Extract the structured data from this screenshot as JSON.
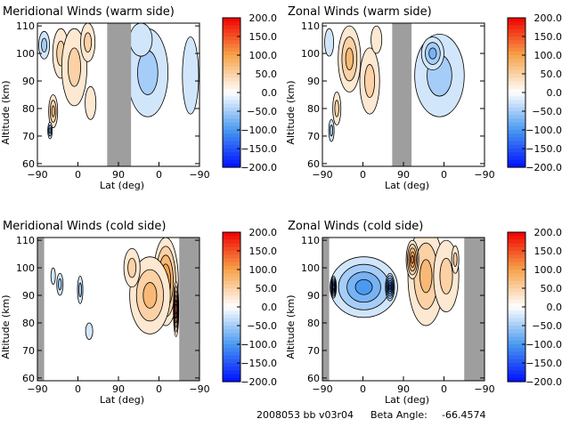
{
  "footer": {
    "orbit_id": "2008053 bb v03r04",
    "beta_label": "Beta Angle:",
    "beta_value": "-66.4574"
  },
  "colorbar": {
    "ticks": [
      "200.0",
      "150.0",
      "100.0",
      "50.0",
      "0.0",
      "−50.0",
      "−100.0",
      "−150.0",
      "−200.0"
    ],
    "range": [
      -200,
      200
    ],
    "colors": {
      "neg_end": "#0010ff",
      "neg_mid": "#4a9af0",
      "zero": "#ffffff",
      "pos_mid": "#f6a24a",
      "pos_end": "#f00000"
    }
  },
  "colors": {
    "data_gap": "#9e9e9e",
    "warm_fill": "#f6b36a",
    "cool_fill": "#a8d0f5",
    "line": "#000000"
  },
  "chart_data": [
    {
      "id": "meridional-warm",
      "type": "heatmap",
      "title": "Meridional Winds (warm side)",
      "xlabel": "Lat (deg)",
      "ylabel": "Altitude (km)",
      "x_tick_labels": [
        "−90",
        "0",
        "90",
        "0",
        "−90"
      ],
      "y_ticks": [
        60,
        70,
        80,
        90,
        100,
        110
      ],
      "ylim": [
        59,
        111
      ],
      "xlim": [
        -90,
        270
      ],
      "gap_regions": [
        [
          65,
          118
        ]
      ],
      "blobs": [
        {
          "x": -38,
          "y": 100,
          "rx": 18,
          "ry": 9,
          "v": 60
        },
        {
          "x": -55,
          "y": 79,
          "rx": 10,
          "ry": 6,
          "v": 65
        },
        {
          "x": -8,
          "y": 95,
          "rx": 28,
          "ry": 14,
          "v": 45
        },
        {
          "x": 28,
          "y": 82,
          "rx": 12,
          "ry": 6,
          "v": 35
        },
        {
          "x": 22,
          "y": 104,
          "rx": 16,
          "ry": 7,
          "v": 40
        },
        {
          "x": -75,
          "y": 103,
          "rx": 12,
          "ry": 5,
          "v": -40
        },
        {
          "x": -62,
          "y": 72,
          "rx": 5,
          "ry": 3,
          "v": -70
        },
        {
          "x": 155,
          "y": 93,
          "rx": 45,
          "ry": 16,
          "v": -45
        },
        {
          "x": 140,
          "y": 105,
          "rx": 25,
          "ry": 6,
          "v": -35
        },
        {
          "x": 250,
          "y": 92,
          "rx": 18,
          "ry": 14,
          "v": -30
        }
      ]
    },
    {
      "id": "zonal-warm",
      "type": "heatmap",
      "title": "Zonal Winds (warm side)",
      "xlabel": "Lat (deg)",
      "ylabel": "Altitude (km)",
      "x_tick_labels": [
        "−90",
        "0",
        "90",
        "0",
        "−90"
      ],
      "y_ticks": [
        60,
        70,
        80,
        90,
        100,
        110
      ],
      "ylim": [
        59,
        111
      ],
      "xlim": [
        -90,
        270
      ],
      "gap_regions": [
        [
          65,
          108
        ]
      ],
      "blobs": [
        {
          "x": -30,
          "y": 98,
          "rx": 25,
          "ry": 12,
          "v": 65
        },
        {
          "x": -58,
          "y": 80,
          "rx": 9,
          "ry": 6,
          "v": 55
        },
        {
          "x": 15,
          "y": 90,
          "rx": 22,
          "ry": 12,
          "v": 40
        },
        {
          "x": 30,
          "y": 105,
          "rx": 12,
          "ry": 5,
          "v": 30
        },
        {
          "x": -70,
          "y": 72,
          "rx": 6,
          "ry": 4,
          "v": -60
        },
        {
          "x": -75,
          "y": 104,
          "rx": 10,
          "ry": 5,
          "v": -35
        },
        {
          "x": 170,
          "y": 92,
          "rx": 55,
          "ry": 15,
          "v": -60
        },
        {
          "x": 155,
          "y": 100,
          "rx": 25,
          "ry": 6,
          "v": -80
        }
      ]
    },
    {
      "id": "meridional-cold",
      "type": "heatmap",
      "title": "Meridional Winds (cold side)",
      "xlabel": "Lat (deg)",
      "ylabel": "Altitude (km)",
      "x_tick_labels": [
        "−90",
        "0",
        "90",
        "0",
        "−90"
      ],
      "y_ticks": [
        60,
        70,
        80,
        90,
        100,
        110
      ],
      "ylim": [
        59,
        111
      ],
      "xlim": [
        -90,
        270
      ],
      "gap_regions": [
        [
          -90,
          -75
        ],
        [
          225,
          270
        ]
      ],
      "blobs": [
        {
          "x": 195,
          "y": 95,
          "rx": 28,
          "ry": 16,
          "v": 125
        },
        {
          "x": 160,
          "y": 90,
          "rx": 45,
          "ry": 14,
          "v": 70
        },
        {
          "x": 120,
          "y": 100,
          "rx": 18,
          "ry": 7,
          "v": 45
        },
        {
          "x": 218,
          "y": 85,
          "rx": 6,
          "ry": 10,
          "v": 140
        },
        {
          "x": -40,
          "y": 94,
          "rx": 7,
          "ry": 4,
          "v": -45
        },
        {
          "x": 5,
          "y": 92,
          "rx": 6,
          "ry": 5,
          "v": -40
        },
        {
          "x": 25,
          "y": 77,
          "rx": 8,
          "ry": 3,
          "v": -35
        },
        {
          "x": -55,
          "y": 97,
          "rx": 5,
          "ry": 3,
          "v": -30
        }
      ]
    },
    {
      "id": "zonal-cold",
      "type": "heatmap",
      "title": "Zonal Winds (cold side)",
      "xlabel": "Lat (deg)",
      "ylabel": "Altitude (km)",
      "x_tick_labels": [
        "−90",
        "0",
        "90",
        "0",
        "−90"
      ],
      "y_ticks": [
        60,
        70,
        80,
        90,
        100,
        110
      ],
      "ylim": [
        59,
        111
      ],
      "xlim": [
        -90,
        270
      ],
      "gap_regions": [
        [
          -90,
          -75
        ],
        [
          225,
          270
        ]
      ],
      "blobs": [
        {
          "x": 2,
          "y": 93,
          "rx": 75,
          "ry": 11,
          "v": -100
        },
        {
          "x": -65,
          "y": 93,
          "rx": 6,
          "ry": 4,
          "v": -160
        },
        {
          "x": 60,
          "y": 93,
          "rx": 10,
          "ry": 5,
          "v": -140
        },
        {
          "x": 140,
          "y": 97,
          "rx": 40,
          "ry": 18,
          "v": 75
        },
        {
          "x": 110,
          "y": 103,
          "rx": 14,
          "ry": 7,
          "v": 125
        },
        {
          "x": 185,
          "y": 97,
          "rx": 28,
          "ry": 13,
          "v": 45
        },
        {
          "x": 205,
          "y": 103,
          "rx": 8,
          "ry": 5,
          "v": 60
        }
      ]
    }
  ]
}
